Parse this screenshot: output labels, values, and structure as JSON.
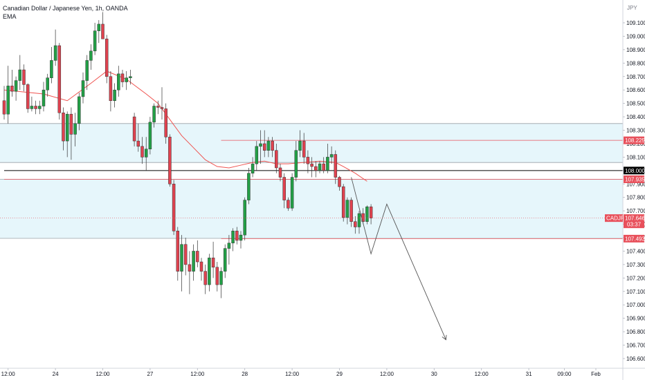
{
  "header": {
    "symbol_title": "Canadian Dollar / Japanese Yen, 1h, OANDA",
    "indicator": "EMA",
    "currency": "JPY"
  },
  "colors": {
    "up": "#22a046",
    "down": "#e0424f",
    "ema": "#ef5350",
    "zone_fill": "#e6f6fb",
    "zone_border": "#9aa0a6",
    "level_red": "#e8505b",
    "level_black": "#000000",
    "projection": "#555555"
  },
  "price_axis": {
    "min": 106.55,
    "max": 109.2,
    "ticks": [
      "109.100",
      "109.000",
      "108.900",
      "108.800",
      "108.700",
      "108.600",
      "108.500",
      "108.400",
      "108.300",
      "108.200",
      "108.100",
      "108.000",
      "107.900",
      "107.800",
      "107.700",
      "107.600",
      "107.500",
      "107.400",
      "107.300",
      "107.200",
      "107.100",
      "107.000",
      "106.900",
      "106.800",
      "106.700",
      "106.600"
    ]
  },
  "time_axis": {
    "labels": [
      {
        "text": "12:00",
        "i": 1
      },
      {
        "text": "24",
        "i": 13
      },
      {
        "text": "12:00",
        "i": 25
      },
      {
        "text": "27",
        "i": 37
      },
      {
        "text": "12:00",
        "i": 49
      },
      {
        "text": "28",
        "i": 61
      },
      {
        "text": "12:00",
        "i": 73
      },
      {
        "text": "29",
        "i": 85
      },
      {
        "text": "12:00",
        "i": 97
      },
      {
        "text": "30",
        "i": 109
      },
      {
        "text": "12:00",
        "i": 121
      },
      {
        "text": "31",
        "i": 133
      },
      {
        "text": "09:00",
        "i": 142
      },
      {
        "text": "Feb",
        "i": 150
      }
    ]
  },
  "zones": [
    {
      "from": 108.06,
      "to": 108.35
    },
    {
      "from": 107.495,
      "to": 107.935
    }
  ],
  "levels": [
    {
      "price": 108.225,
      "label": "108.225",
      "style": "red",
      "start_i": 55
    },
    {
      "price": 108.0,
      "label": "108.000",
      "style": "black",
      "start_i": 0
    },
    {
      "price": 107.935,
      "label": "107.935",
      "style": "red-full",
      "start_i": 0
    },
    {
      "price": 107.493,
      "label": "107.493",
      "style": "red",
      "start_i": 55
    }
  ],
  "last_price": {
    "symbol": "CADJPY",
    "price": 107.646,
    "label": "107.646",
    "countdown": "03:37"
  },
  "projection": {
    "points": [
      {
        "i": 88,
        "price": 107.95
      },
      {
        "i": 93,
        "price": 107.38
      },
      {
        "i": 97,
        "price": 107.75
      },
      {
        "i": 112,
        "price": 106.74
      }
    ]
  },
  "chart_data": {
    "type": "candlestick",
    "title": "Canadian Dollar / Japanese Yen, 1h, OANDA",
    "x_unit": "hourly bars",
    "y_unit": "JPY",
    "ylim": [
      106.55,
      109.2
    ],
    "candles": [
      {
        "o": 108.52,
        "h": 108.63,
        "l": 108.38,
        "c": 108.42
      },
      {
        "o": 108.42,
        "h": 108.78,
        "l": 108.35,
        "c": 108.63
      },
      {
        "o": 108.63,
        "h": 108.75,
        "l": 108.55,
        "c": 108.59
      },
      {
        "o": 108.59,
        "h": 108.7,
        "l": 108.52,
        "c": 108.67
      },
      {
        "o": 108.67,
        "h": 108.86,
        "l": 108.6,
        "c": 108.75
      },
      {
        "o": 108.75,
        "h": 108.79,
        "l": 108.59,
        "c": 108.64
      },
      {
        "o": 108.64,
        "h": 108.65,
        "l": 108.43,
        "c": 108.46
      },
      {
        "o": 108.46,
        "h": 108.55,
        "l": 108.44,
        "c": 108.48
      },
      {
        "o": 108.48,
        "h": 108.52,
        "l": 108.42,
        "c": 108.46
      },
      {
        "o": 108.46,
        "h": 108.52,
        "l": 108.42,
        "c": 108.48
      },
      {
        "o": 108.48,
        "h": 108.66,
        "l": 108.44,
        "c": 108.6
      },
      {
        "o": 108.6,
        "h": 108.72,
        "l": 108.55,
        "c": 108.69
      },
      {
        "o": 108.69,
        "h": 108.92,
        "l": 108.65,
        "c": 108.82
      },
      {
        "o": 108.82,
        "h": 109.05,
        "l": 108.78,
        "c": 108.93
      },
      {
        "o": 108.93,
        "h": 108.95,
        "l": 108.38,
        "c": 108.43
      },
      {
        "o": 108.43,
        "h": 108.47,
        "l": 108.15,
        "c": 108.22
      },
      {
        "o": 108.22,
        "h": 108.44,
        "l": 108.1,
        "c": 108.42
      },
      {
        "o": 108.42,
        "h": 108.47,
        "l": 108.08,
        "c": 108.27
      },
      {
        "o": 108.27,
        "h": 108.43,
        "l": 108.18,
        "c": 108.35
      },
      {
        "o": 108.35,
        "h": 108.58,
        "l": 108.3,
        "c": 108.55
      },
      {
        "o": 108.55,
        "h": 108.73,
        "l": 108.5,
        "c": 108.67
      },
      {
        "o": 108.67,
        "h": 108.86,
        "l": 108.6,
        "c": 108.82
      },
      {
        "o": 108.82,
        "h": 108.94,
        "l": 108.75,
        "c": 108.89
      },
      {
        "o": 108.89,
        "h": 109.1,
        "l": 108.86,
        "c": 109.04
      },
      {
        "o": 109.04,
        "h": 109.12,
        "l": 108.95,
        "c": 109.09
      },
      {
        "o": 109.09,
        "h": 109.18,
        "l": 109.0,
        "c": 108.98
      },
      {
        "o": 108.98,
        "h": 109.01,
        "l": 108.65,
        "c": 108.7
      },
      {
        "o": 108.7,
        "h": 108.74,
        "l": 108.44,
        "c": 108.52
      },
      {
        "o": 108.52,
        "h": 108.65,
        "l": 108.47,
        "c": 108.6
      },
      {
        "o": 108.6,
        "h": 108.78,
        "l": 108.55,
        "c": 108.72
      },
      {
        "o": 108.72,
        "h": 108.75,
        "l": 108.62,
        "c": 108.66
      },
      {
        "o": 108.66,
        "h": 108.74,
        "l": 108.6,
        "c": 108.69
      },
      {
        "o": 108.69,
        "h": 108.75,
        "l": 108.64,
        "c": 108.7
      },
      {
        "o": 108.4,
        "h": 108.43,
        "l": 108.18,
        "c": 108.22
      },
      {
        "o": 108.22,
        "h": 108.35,
        "l": 108.14,
        "c": 108.18
      },
      {
        "o": 108.18,
        "h": 108.25,
        "l": 108.05,
        "c": 108.1
      },
      {
        "o": 108.1,
        "h": 108.25,
        "l": 108.0,
        "c": 108.16
      },
      {
        "o": 108.16,
        "h": 108.4,
        "l": 108.12,
        "c": 108.36
      },
      {
        "o": 108.36,
        "h": 108.5,
        "l": 108.32,
        "c": 108.48
      },
      {
        "o": 108.48,
        "h": 108.52,
        "l": 108.42,
        "c": 108.47
      },
      {
        "o": 108.47,
        "h": 108.62,
        "l": 108.38,
        "c": 108.46
      },
      {
        "o": 108.46,
        "h": 108.5,
        "l": 108.2,
        "c": 108.25
      },
      {
        "o": 108.25,
        "h": 108.27,
        "l": 107.88,
        "c": 107.9
      },
      {
        "o": 107.9,
        "h": 107.93,
        "l": 107.52,
        "c": 107.55
      },
      {
        "o": 107.55,
        "h": 107.58,
        "l": 107.18,
        "c": 107.25
      },
      {
        "o": 107.25,
        "h": 107.52,
        "l": 107.1,
        "c": 107.45
      },
      {
        "o": 107.45,
        "h": 107.5,
        "l": 107.22,
        "c": 107.3
      },
      {
        "o": 107.3,
        "h": 107.4,
        "l": 107.08,
        "c": 107.25
      },
      {
        "o": 107.25,
        "h": 107.45,
        "l": 107.18,
        "c": 107.4
      },
      {
        "o": 107.4,
        "h": 107.48,
        "l": 107.28,
        "c": 107.32
      },
      {
        "o": 107.32,
        "h": 107.35,
        "l": 107.18,
        "c": 107.25
      },
      {
        "o": 107.25,
        "h": 107.3,
        "l": 107.08,
        "c": 107.15
      },
      {
        "o": 107.15,
        "h": 107.38,
        "l": 107.1,
        "c": 107.35
      },
      {
        "o": 107.35,
        "h": 107.47,
        "l": 107.2,
        "c": 107.28
      },
      {
        "o": 107.28,
        "h": 107.32,
        "l": 107.1,
        "c": 107.15
      },
      {
        "o": 107.15,
        "h": 107.28,
        "l": 107.05,
        "c": 107.25
      },
      {
        "o": 107.25,
        "h": 107.45,
        "l": 107.2,
        "c": 107.42
      },
      {
        "o": 107.42,
        "h": 107.52,
        "l": 107.3,
        "c": 107.46
      },
      {
        "o": 107.46,
        "h": 107.57,
        "l": 107.4,
        "c": 107.55
      },
      {
        "o": 107.55,
        "h": 107.58,
        "l": 107.45,
        "c": 107.48
      },
      {
        "o": 107.48,
        "h": 107.55,
        "l": 107.42,
        "c": 107.52
      },
      {
        "o": 107.52,
        "h": 107.8,
        "l": 107.48,
        "c": 107.78
      },
      {
        "o": 107.78,
        "h": 108.02,
        "l": 107.75,
        "c": 107.98
      },
      {
        "o": 107.98,
        "h": 108.1,
        "l": 107.95,
        "c": 108.05
      },
      {
        "o": 108.05,
        "h": 108.22,
        "l": 108.0,
        "c": 108.18
      },
      {
        "o": 108.18,
        "h": 108.3,
        "l": 108.05,
        "c": 108.2
      },
      {
        "o": 108.2,
        "h": 108.3,
        "l": 108.1,
        "c": 108.15
      },
      {
        "o": 108.15,
        "h": 108.25,
        "l": 108.1,
        "c": 108.22
      },
      {
        "o": 108.22,
        "h": 108.25,
        "l": 108.1,
        "c": 108.15
      },
      {
        "o": 108.15,
        "h": 108.2,
        "l": 107.98,
        "c": 108.02
      },
      {
        "o": 108.02,
        "h": 108.05,
        "l": 107.92,
        "c": 107.95
      },
      {
        "o": 107.95,
        "h": 107.98,
        "l": 107.72,
        "c": 107.78
      },
      {
        "o": 107.78,
        "h": 107.8,
        "l": 107.7,
        "c": 107.72
      },
      {
        "o": 107.72,
        "h": 107.98,
        "l": 107.7,
        "c": 107.95
      },
      {
        "o": 107.95,
        "h": 108.22,
        "l": 107.92,
        "c": 108.15
      },
      {
        "o": 108.15,
        "h": 108.3,
        "l": 108.1,
        "c": 108.22
      },
      {
        "o": 108.22,
        "h": 108.28,
        "l": 108.05,
        "c": 108.1
      },
      {
        "o": 108.1,
        "h": 108.15,
        "l": 107.98,
        "c": 108.05
      },
      {
        "o": 108.05,
        "h": 108.1,
        "l": 107.95,
        "c": 108.03
      },
      {
        "o": 108.03,
        "h": 108.07,
        "l": 107.95,
        "c": 108.0
      },
      {
        "o": 108.0,
        "h": 108.07,
        "l": 107.98,
        "c": 108.05
      },
      {
        "o": 108.05,
        "h": 108.1,
        "l": 107.98,
        "c": 108.0
      },
      {
        "o": 108.0,
        "h": 108.2,
        "l": 107.98,
        "c": 108.1
      },
      {
        "o": 108.1,
        "h": 108.18,
        "l": 108.05,
        "c": 108.12
      },
      {
        "o": 108.12,
        "h": 108.15,
        "l": 107.9,
        "c": 107.95
      },
      {
        "o": 107.95,
        "h": 107.96,
        "l": 107.85,
        "c": 107.88
      },
      {
        "o": 107.88,
        "h": 107.9,
        "l": 107.62,
        "c": 107.65
      },
      {
        "o": 107.65,
        "h": 107.8,
        "l": 107.6,
        "c": 107.78
      },
      {
        "o": 107.78,
        "h": 107.8,
        "l": 107.58,
        "c": 107.62
      },
      {
        "o": 107.62,
        "h": 107.66,
        "l": 107.53,
        "c": 107.58
      },
      {
        "o": 107.58,
        "h": 107.7,
        "l": 107.53,
        "c": 107.68
      },
      {
        "o": 107.68,
        "h": 107.72,
        "l": 107.6,
        "c": 107.62
      },
      {
        "o": 107.62,
        "h": 107.74,
        "l": 107.6,
        "c": 107.73
      },
      {
        "o": 107.73,
        "h": 107.75,
        "l": 107.6,
        "c": 107.646
      }
    ],
    "ema_points": [
      {
        "i": 0,
        "v": 108.6
      },
      {
        "i": 10,
        "v": 108.57
      },
      {
        "i": 16,
        "v": 108.52
      },
      {
        "i": 22,
        "v": 108.65
      },
      {
        "i": 26,
        "v": 108.74
      },
      {
        "i": 31,
        "v": 108.68
      },
      {
        "i": 36,
        "v": 108.57
      },
      {
        "i": 39,
        "v": 108.5
      },
      {
        "i": 42,
        "v": 108.38
      },
      {
        "i": 45,
        "v": 108.26
      },
      {
        "i": 48,
        "v": 108.17
      },
      {
        "i": 51,
        "v": 108.08
      },
      {
        "i": 54,
        "v": 108.03
      },
      {
        "i": 57,
        "v": 108.02
      },
      {
        "i": 60,
        "v": 108.04
      },
      {
        "i": 63,
        "v": 108.06
      },
      {
        "i": 66,
        "v": 108.07
      },
      {
        "i": 69,
        "v": 108.05
      },
      {
        "i": 72,
        "v": 108.05
      },
      {
        "i": 76,
        "v": 108.06
      },
      {
        "i": 80,
        "v": 108.07
      },
      {
        "i": 84,
        "v": 108.06
      },
      {
        "i": 86,
        "v": 108.03
      },
      {
        "i": 89,
        "v": 107.98
      },
      {
        "i": 92,
        "v": 107.92
      }
    ]
  }
}
